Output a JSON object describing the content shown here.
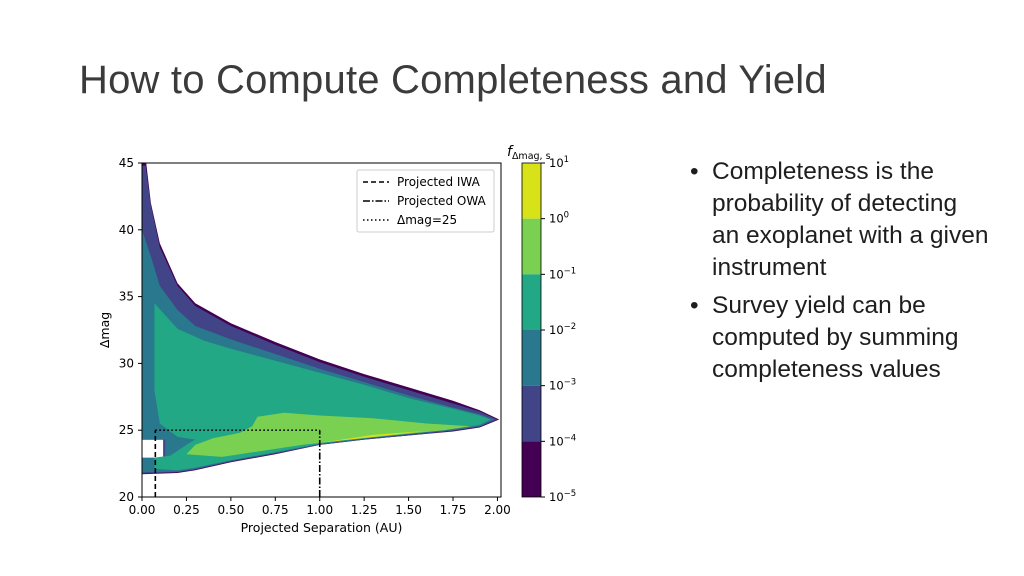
{
  "slide": {
    "title": "How to Compute Completeness and Yield",
    "bullets": [
      "Completeness is the probability of detecting an exoplanet with a given instrument",
      "Survey yield can be computed by summing completeness values"
    ]
  },
  "chart_data": {
    "type": "heatmap",
    "subtype": "filled-contour",
    "title": "",
    "xlabel": "Projected Separation (AU)",
    "ylabel": "Δmag",
    "xlim": [
      0.0,
      2.02
    ],
    "ylim": [
      20,
      45
    ],
    "xticks": [
      "0.00",
      "0.25",
      "0.50",
      "0.75",
      "1.00",
      "1.25",
      "1.50",
      "1.75",
      "2.00"
    ],
    "yticks": [
      "20",
      "25",
      "30",
      "35",
      "40",
      "45"
    ],
    "legend": {
      "placement": "upper right",
      "entries": [
        {
          "label": "Projected IWA",
          "style": "dashed"
        },
        {
          "label": "Projected OWA",
          "style": "dashdot"
        },
        {
          "label": "Δmag=25",
          "style": "dotted"
        }
      ]
    },
    "lines": {
      "iwa_x": 0.075,
      "owa_x": 1.0,
      "dmag_limit": 25,
      "dmag_floor": 20
    },
    "colorbar": {
      "label_main": "f",
      "label_sub": "Δmag, s",
      "scale": "log",
      "tick_base": "10",
      "tick_exponents": [
        "1",
        "0",
        "−1",
        "−2",
        "−3",
        "−4",
        "−5"
      ],
      "levels": [
        {
          "range": "1e0–1e1",
          "color": "#d8e219"
        },
        {
          "range": "1e-1–1e0",
          "color": "#7ad151"
        },
        {
          "range": "1e-2–1e-1",
          "color": "#22a884"
        },
        {
          "range": "1e-3–1e-2",
          "color": "#2a788e"
        },
        {
          "range": "1e-4–1e-3",
          "color": "#414487"
        },
        {
          "range": "1e-5–1e-4",
          "color": "#440154"
        }
      ]
    },
    "contours": [
      {
        "level": "1e-5",
        "color": "#440154",
        "points": [
          [
            0.02,
            45.4
          ],
          [
            0.05,
            42
          ],
          [
            0.1,
            39
          ],
          [
            0.2,
            36
          ],
          [
            0.3,
            34.5
          ],
          [
            0.5,
            33
          ],
          [
            0.75,
            31.6
          ],
          [
            1.0,
            30.3
          ],
          [
            1.25,
            29.2
          ],
          [
            1.5,
            28.2
          ],
          [
            1.75,
            27.2
          ],
          [
            1.9,
            26.5
          ],
          [
            2.01,
            25.8
          ],
          [
            1.9,
            25.2
          ],
          [
            1.75,
            24.9
          ],
          [
            1.5,
            24.6
          ],
          [
            1.25,
            24.3
          ],
          [
            1.0,
            23.9
          ],
          [
            0.75,
            23.2
          ],
          [
            0.5,
            22.6
          ],
          [
            0.3,
            22.0
          ],
          [
            0.2,
            21.8
          ],
          [
            0.0,
            21.7
          ],
          [
            0.0,
            22.9
          ],
          [
            0.12,
            22.9
          ],
          [
            0.12,
            24.3
          ],
          [
            0.0,
            24.3
          ],
          [
            0.0,
            45.4
          ]
        ]
      },
      {
        "level": "1e-4",
        "color": "#414487",
        "points": [
          [
            0.02,
            44.8
          ],
          [
            0.05,
            41.8
          ],
          [
            0.1,
            38.7
          ],
          [
            0.2,
            35.8
          ],
          [
            0.3,
            34.3
          ],
          [
            0.5,
            32.8
          ],
          [
            0.75,
            31.4
          ],
          [
            1.0,
            30.1
          ],
          [
            1.25,
            29.0
          ],
          [
            1.5,
            28.0
          ],
          [
            1.75,
            27.0
          ],
          [
            1.9,
            26.4
          ],
          [
            2.0,
            25.8
          ],
          [
            1.9,
            25.25
          ],
          [
            1.75,
            24.95
          ],
          [
            1.5,
            24.6
          ],
          [
            1.25,
            24.3
          ],
          [
            1.0,
            23.9
          ],
          [
            0.75,
            23.25
          ],
          [
            0.5,
            22.65
          ],
          [
            0.3,
            22.05
          ],
          [
            0.2,
            21.85
          ],
          [
            0.0,
            21.75
          ],
          [
            0.0,
            22.9
          ],
          [
            0.12,
            22.9
          ],
          [
            0.12,
            24.3
          ],
          [
            0.0,
            24.3
          ],
          [
            0.0,
            44.8
          ]
        ]
      },
      {
        "level": "1e-3",
        "color": "#2a788e",
        "points": [
          [
            0.0,
            40
          ],
          [
            0.05,
            38
          ],
          [
            0.1,
            35.8
          ],
          [
            0.2,
            34.0
          ],
          [
            0.3,
            32.8
          ],
          [
            0.5,
            31.8
          ],
          [
            0.75,
            30.7
          ],
          [
            1.0,
            29.6
          ],
          [
            1.25,
            28.6
          ],
          [
            1.5,
            27.6
          ],
          [
            1.75,
            26.7
          ],
          [
            1.9,
            26.2
          ],
          [
            1.98,
            25.8
          ],
          [
            1.9,
            25.3
          ],
          [
            1.75,
            25.0
          ],
          [
            1.5,
            24.7
          ],
          [
            1.25,
            24.35
          ],
          [
            1.0,
            23.95
          ],
          [
            0.75,
            23.3
          ],
          [
            0.5,
            22.7
          ],
          [
            0.3,
            22.1
          ],
          [
            0.2,
            21.9
          ],
          [
            0.0,
            21.85
          ],
          [
            0.0,
            22.95
          ],
          [
            0.13,
            22.95
          ],
          [
            0.13,
            24.3
          ],
          [
            0.0,
            24.3
          ],
          [
            0.0,
            40
          ]
        ]
      },
      {
        "level": "1e-2",
        "color": "#22a884",
        "points": [
          [
            0.07,
            34.5
          ],
          [
            0.2,
            32.6
          ],
          [
            0.35,
            31.7
          ],
          [
            0.5,
            31.1
          ],
          [
            0.75,
            30.2
          ],
          [
            1.0,
            29.3
          ],
          [
            1.25,
            28.4
          ],
          [
            1.5,
            27.4
          ],
          [
            1.75,
            26.6
          ],
          [
            1.9,
            26.1
          ],
          [
            1.96,
            25.8
          ],
          [
            1.9,
            25.4
          ],
          [
            1.75,
            25.1
          ],
          [
            1.5,
            24.75
          ],
          [
            1.25,
            24.4
          ],
          [
            1.0,
            24.0
          ],
          [
            0.75,
            23.35
          ],
          [
            0.5,
            22.75
          ],
          [
            0.3,
            22.2
          ],
          [
            0.2,
            22.0
          ],
          [
            0.07,
            22.1
          ],
          [
            0.07,
            22.95
          ],
          [
            0.16,
            23.1
          ],
          [
            0.26,
            24.0
          ],
          [
            0.3,
            24.3
          ],
          [
            0.2,
            24.5
          ],
          [
            0.1,
            25.5
          ],
          [
            0.07,
            28
          ],
          [
            0.07,
            34.5
          ]
        ]
      },
      {
        "level": "1e-1",
        "color": "#7ad151",
        "points": [
          [
            0.25,
            23.2
          ],
          [
            0.45,
            23.0
          ],
          [
            0.7,
            23.5
          ],
          [
            0.9,
            23.9
          ],
          [
            1.1,
            24.2
          ],
          [
            1.4,
            24.6
          ],
          [
            1.7,
            25.0
          ],
          [
            1.85,
            25.3
          ],
          [
            1.6,
            25.5
          ],
          [
            1.3,
            25.9
          ],
          [
            1.0,
            26.1
          ],
          [
            0.8,
            26.3
          ],
          [
            0.65,
            26.0
          ],
          [
            0.62,
            25.3
          ],
          [
            0.55,
            24.8
          ],
          [
            0.4,
            24.4
          ],
          [
            0.3,
            23.9
          ],
          [
            0.25,
            23.2
          ]
        ]
      },
      {
        "level": "1e0",
        "color": "#d8e219",
        "points": [
          [
            1.0,
            24.05
          ],
          [
            1.3,
            24.5
          ],
          [
            1.6,
            24.95
          ],
          [
            1.3,
            24.65
          ],
          [
            1.0,
            24.05
          ]
        ]
      }
    ]
  }
}
